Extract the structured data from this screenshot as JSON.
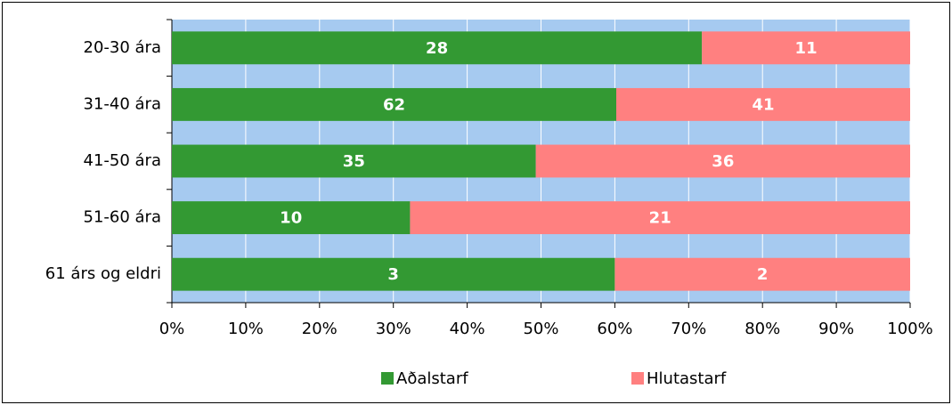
{
  "chart_data": {
    "type": "bar",
    "orientation": "horizontal",
    "stacking": "percent",
    "categories": [
      "20-30 ára",
      "31-40 ára",
      "41-50 ára",
      "51-60 ára",
      "61 árs og eldri"
    ],
    "series": [
      {
        "name": "Aðalstarf",
        "color": "#339933",
        "values": [
          28,
          62,
          35,
          10,
          3
        ]
      },
      {
        "name": "Hlutastarf",
        "color": "#ff8080",
        "values": [
          11,
          41,
          36,
          21,
          2
        ]
      }
    ],
    "xlim": [
      0,
      100
    ],
    "xticks": [
      {
        "value": 0,
        "label": "0%"
      },
      {
        "value": 10,
        "label": "10%"
      },
      {
        "value": 20,
        "label": "20%"
      },
      {
        "value": 30,
        "label": "30%"
      },
      {
        "value": 40,
        "label": "40%"
      },
      {
        "value": 50,
        "label": "50%"
      },
      {
        "value": 60,
        "label": "60%"
      },
      {
        "value": 70,
        "label": "70%"
      },
      {
        "value": 80,
        "label": "80%"
      },
      {
        "value": 90,
        "label": "90%"
      },
      {
        "value": 100,
        "label": "100%"
      }
    ],
    "grid": true,
    "plot_background": "#a6caf0",
    "legend": "bottom"
  }
}
